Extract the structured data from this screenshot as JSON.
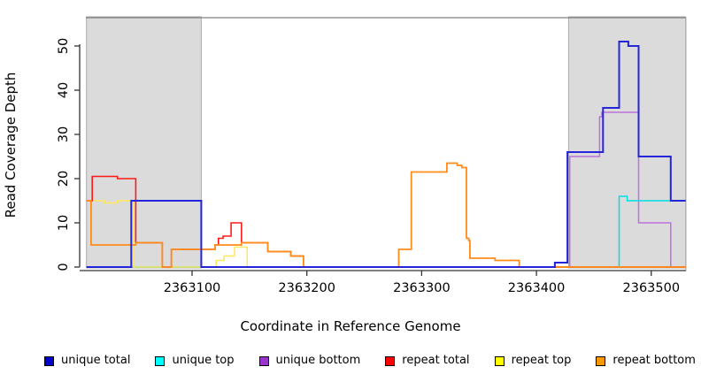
{
  "chart_data": {
    "type": "line",
    "step": true,
    "title": "",
    "xlabel": "Coordinate in Reference Genome",
    "ylabel": "Read Coverage Depth",
    "xlim": [
      2363008,
      2363530
    ],
    "ylim": [
      0,
      52
    ],
    "grid": false,
    "legend_position": "bottom-horizontal",
    "x_ticks": [
      {
        "value": 2363100,
        "label": "2363100"
      },
      {
        "value": 2363200,
        "label": "2363200"
      },
      {
        "value": 2363300,
        "label": "2363300"
      },
      {
        "value": 2363400,
        "label": "2363400"
      },
      {
        "value": 2363500,
        "label": "2363500"
      }
    ],
    "y_ticks": [
      {
        "value": 0,
        "label": "0"
      },
      {
        "value": 10,
        "label": "10"
      },
      {
        "value": 20,
        "label": "20"
      },
      {
        "value": 30,
        "label": "30"
      },
      {
        "value": 40,
        "label": "40"
      },
      {
        "value": 50,
        "label": "50"
      }
    ],
    "shaded_regions": [
      {
        "x1": 2363008,
        "x2": 2363108,
        "fill": "#DBDBDB"
      },
      {
        "x1": 2363428,
        "x2": 2363530,
        "fill": "#DBDBDB"
      }
    ],
    "series": [
      {
        "name": "unique total",
        "color": "#2424D9",
        "swatch": "#0000CC",
        "width": 2,
        "points": [
          [
            2363008,
            0
          ],
          [
            2363047,
            15
          ],
          [
            2363108,
            0
          ],
          [
            2363416,
            1
          ],
          [
            2363427,
            26
          ],
          [
            2363458,
            36
          ],
          [
            2363472,
            51
          ],
          [
            2363480,
            50
          ],
          [
            2363489,
            25
          ],
          [
            2363517,
            15
          ]
        ]
      },
      {
        "name": "unique top",
        "color": "#00E0E6",
        "swatch": "#00FFFF",
        "width": 1.5,
        "points": [
          [
            2363008,
            0
          ],
          [
            2363472,
            16
          ],
          [
            2363479,
            15
          ]
        ]
      },
      {
        "name": "unique bottom",
        "color": "#BE72DE",
        "swatch": "#9933CC",
        "width": 1.5,
        "points": [
          [
            2363008,
            0
          ],
          [
            2363047,
            15
          ],
          [
            2363108,
            0
          ],
          [
            2363429,
            25
          ],
          [
            2363455,
            34
          ],
          [
            2363457,
            35
          ],
          [
            2363489,
            10
          ],
          [
            2363517,
            0
          ]
        ]
      },
      {
        "name": "repeat total",
        "color": "#FF1A1A",
        "swatch": "#FF0000",
        "width": 1.6,
        "points": [
          [
            2363008,
            15
          ],
          [
            2363013,
            20.5
          ],
          [
            2363035,
            20
          ],
          [
            2363051,
            5.5
          ],
          [
            2363074,
            0
          ],
          [
            2363082,
            4
          ],
          [
            2363120,
            5
          ],
          [
            2363123,
            6.5
          ],
          [
            2363127,
            7
          ],
          [
            2363134,
            10
          ],
          [
            2363143,
            5.5
          ],
          [
            2363166,
            3.5
          ],
          [
            2363186,
            2.5
          ],
          [
            2363197,
            0
          ]
        ]
      },
      {
        "name": "repeat top",
        "color": "#FFE75C",
        "swatch": "#FFFF00",
        "width": 1.5,
        "points": [
          [
            2363008,
            15
          ],
          [
            2363024,
            14.5
          ],
          [
            2363035,
            15
          ],
          [
            2363049,
            0
          ],
          [
            2363121,
            1.5
          ],
          [
            2363128,
            2.5
          ],
          [
            2363137,
            4.5
          ],
          [
            2363148,
            0
          ]
        ]
      },
      {
        "name": "repeat bottom",
        "color": "#FF8C1A",
        "swatch": "#FF9900",
        "width": 1.8,
        "points": [
          [
            2363008,
            15
          ],
          [
            2363012,
            5
          ],
          [
            2363051,
            5.5
          ],
          [
            2363074,
            0
          ],
          [
            2363082,
            4
          ],
          [
            2363120,
            5
          ],
          [
            2363143,
            5.5
          ],
          [
            2363166,
            3.5
          ],
          [
            2363186,
            2.5
          ],
          [
            2363197,
            0
          ],
          [
            2363280,
            4
          ],
          [
            2363291,
            21.5
          ],
          [
            2363322,
            23.5
          ],
          [
            2363331,
            23
          ],
          [
            2363335,
            22.5
          ],
          [
            2363339,
            6.5
          ],
          [
            2363341,
            6
          ],
          [
            2363342,
            2
          ],
          [
            2363364,
            1.5
          ],
          [
            2363385,
            0
          ]
        ]
      }
    ]
  }
}
